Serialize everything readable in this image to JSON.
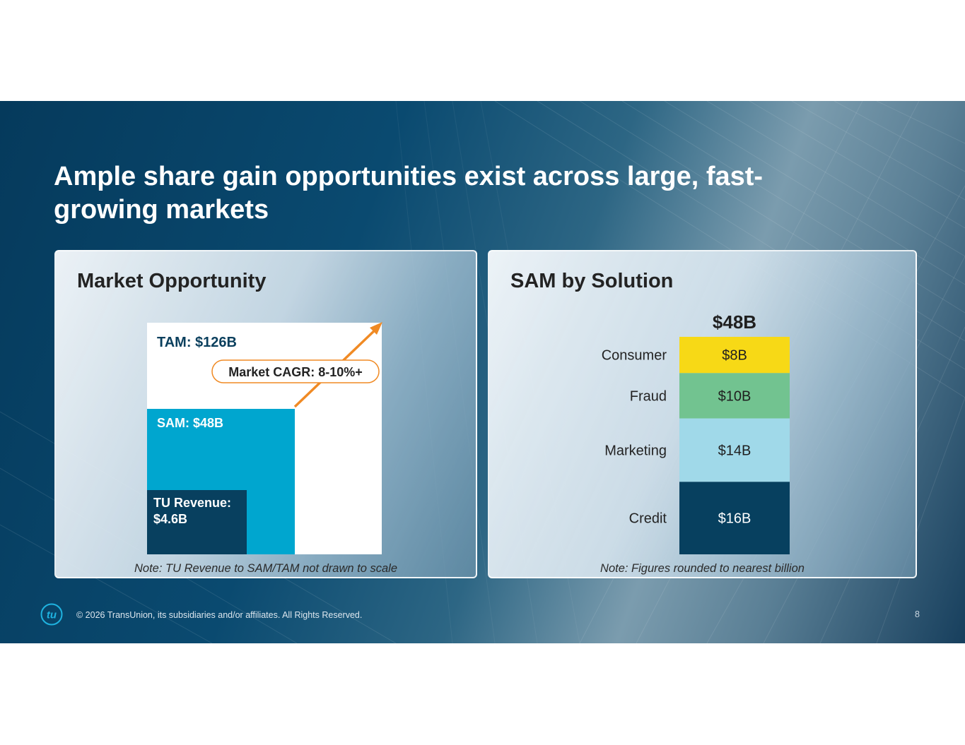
{
  "title": "Ample share gain opportunities exist across large, fast-growing markets",
  "footer": {
    "copyright": "© 2026 TransUnion, its subsidiaries and/or affiliates. All Rights Reserved.",
    "page_number": "8",
    "logo_text": "tu",
    "logo_icon": "transunion-logo-icon"
  },
  "colors": {
    "tam": "#ffffff",
    "sam": "#00a6cf",
    "tu_revenue": "#08405f",
    "arrow": "#f08a24",
    "consumer": "#f7d916",
    "fraud": "#72c390",
    "marketing": "#a0d9e9",
    "credit": "#07405f"
  },
  "left_panel": {
    "heading": "Market Opportunity",
    "note": "Note: TU Revenue to SAM/TAM not drawn to scale"
  },
  "right_panel": {
    "heading": "SAM by Solution",
    "note": "Note: Figures rounded to nearest billion"
  },
  "chart_data": [
    {
      "type": "bar",
      "title": "Market Opportunity",
      "subtype": "nested-area",
      "scale_note": "not drawn to scale",
      "tam": {
        "label": "TAM: $126B",
        "value": 126
      },
      "sam": {
        "label": "SAM: $48B",
        "value": 48
      },
      "tu_revenue": {
        "label_line1": "TU Revenue:",
        "label_line2": "$4.6B",
        "value": 4.6
      },
      "cagr": {
        "label": "Market CAGR: 8-10%+"
      },
      "units": "$B"
    },
    {
      "type": "bar",
      "subtype": "stacked",
      "title": "SAM by Solution",
      "total_label": "$48B",
      "total": 48,
      "units": "$B",
      "segments": [
        {
          "name": "Consumer",
          "value": 8,
          "label": "$8B",
          "color": "#f7d916"
        },
        {
          "name": "Fraud",
          "value": 10,
          "label": "$10B",
          "color": "#72c390"
        },
        {
          "name": "Marketing",
          "value": 14,
          "label": "$14B",
          "color": "#a0d9e9"
        },
        {
          "name": "Credit",
          "value": 16,
          "label": "$16B",
          "color": "#07405f"
        }
      ]
    }
  ]
}
